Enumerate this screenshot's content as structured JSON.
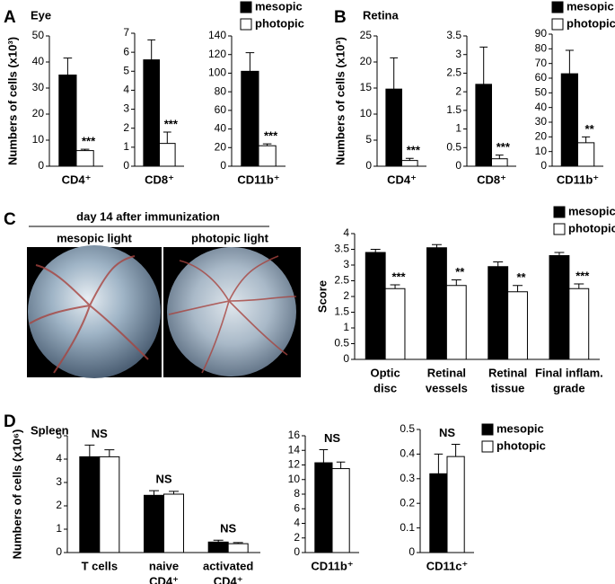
{
  "panels": [
    {
      "label": "A",
      "title": "Eye"
    },
    {
      "label": "B",
      "title": "Retina"
    },
    {
      "label": "C"
    },
    {
      "label": "D",
      "title": "Spleen"
    }
  ],
  "fundus": {
    "title": "day 14 after immunization",
    "labels": [
      "mesopic light",
      "photopic light"
    ]
  },
  "chart_data": [
    {
      "type": "bar",
      "ylabel": "Numbers of cells (x10³)",
      "categories": [
        [
          "CD4⁺"
        ]
      ],
      "series": [
        {
          "color": "#000000",
          "values": [
            35
          ],
          "errors": [
            6.5
          ]
        },
        {
          "color": "#ffffff",
          "values": [
            6
          ],
          "errors": [
            0.5
          ]
        }
      ],
      "annotations": [
        "***"
      ],
      "annotation_anchor": "photopic",
      "ylim": [
        0,
        50
      ],
      "yticks": [
        0,
        10,
        20,
        30,
        40,
        50
      ]
    },
    {
      "type": "bar",
      "categories": [
        [
          "CD8⁺"
        ]
      ],
      "series": [
        {
          "color": "#000000",
          "values": [
            5.6
          ],
          "errors": [
            1.05
          ]
        },
        {
          "color": "#ffffff",
          "values": [
            1.2
          ],
          "errors": [
            0.6
          ]
        }
      ],
      "annotations": [
        "***"
      ],
      "annotation_anchor": "photopic",
      "ylim": [
        0,
        7
      ],
      "yticks": [
        0,
        1,
        2,
        3,
        4,
        5,
        6,
        7
      ]
    },
    {
      "type": "bar",
      "categories": [
        [
          "CD11b⁺"
        ]
      ],
      "series": [
        {
          "name": "mesopic",
          "color": "#000000",
          "values": [
            102
          ],
          "errors": [
            20
          ]
        },
        {
          "name": "photopic",
          "color": "#ffffff",
          "values": [
            22
          ],
          "errors": [
            2
          ]
        }
      ],
      "annotations": [
        "***"
      ],
      "annotation_anchor": "photopic",
      "ylim": [
        0,
        140
      ],
      "yticks": [
        0,
        20,
        40,
        60,
        80,
        100,
        120,
        140
      ],
      "legend": "top-right"
    },
    {
      "type": "bar",
      "ylabel": "Numbers of cells (x10³)",
      "categories": [
        [
          "CD4⁺"
        ]
      ],
      "series": [
        {
          "color": "#000000",
          "values": [
            14.8
          ],
          "errors": [
            6
          ]
        },
        {
          "color": "#ffffff",
          "values": [
            1.1
          ],
          "errors": [
            0.4
          ]
        }
      ],
      "annotations": [
        "***"
      ],
      "annotation_anchor": "photopic",
      "ylim": [
        0,
        25
      ],
      "yticks": [
        0,
        5,
        10,
        15,
        20,
        25
      ]
    },
    {
      "type": "bar",
      "categories": [
        [
          "CD8⁺"
        ]
      ],
      "series": [
        {
          "color": "#000000",
          "values": [
            2.2
          ],
          "errors": [
            1.0
          ]
        },
        {
          "color": "#ffffff",
          "values": [
            0.2
          ],
          "errors": [
            0.1
          ]
        }
      ],
      "annotations": [
        "***"
      ],
      "annotation_anchor": "photopic",
      "ylim": [
        0,
        3.5
      ],
      "yticks": [
        0,
        0.5,
        1,
        1.5,
        2,
        2.5,
        3,
        3.5
      ]
    },
    {
      "type": "bar",
      "categories": [
        [
          "CD11b⁺"
        ]
      ],
      "series": [
        {
          "name": "mesopic",
          "color": "#000000",
          "values": [
            63
          ],
          "errors": [
            16
          ]
        },
        {
          "name": "photopic",
          "color": "#ffffff",
          "values": [
            16
          ],
          "errors": [
            4
          ]
        }
      ],
      "annotations": [
        "**"
      ],
      "annotation_anchor": "photopic",
      "ylim": [
        0,
        90
      ],
      "yticks": [
        0,
        10,
        20,
        30,
        40,
        50,
        60,
        70,
        80,
        90
      ],
      "legend": "top-right"
    },
    {
      "type": "bar",
      "ylabel": "Score",
      "categories": [
        [
          "Optic",
          "disc"
        ],
        [
          "Retinal",
          "vessels"
        ],
        [
          "Retinal",
          "tissue"
        ],
        [
          "Final inflam.",
          "grade"
        ]
      ],
      "series": [
        {
          "name": "mesopic",
          "color": "#000000",
          "values": [
            3.4,
            3.55,
            2.95,
            3.3
          ],
          "errors": [
            0.1,
            0.1,
            0.15,
            0.1
          ]
        },
        {
          "name": "photopic",
          "color": "#ffffff",
          "values": [
            2.25,
            2.35,
            2.15,
            2.25
          ],
          "errors": [
            0.12,
            0.18,
            0.2,
            0.15
          ]
        }
      ],
      "annotations": [
        "***",
        "**",
        "**",
        "***"
      ],
      "annotation_anchor": "photopic",
      "ylim": [
        0,
        4
      ],
      "yticks": [
        0,
        0.5,
        1,
        1.5,
        2,
        2.5,
        3,
        3.5,
        4
      ],
      "legend": "top-right"
    },
    {
      "type": "bar",
      "ylabel": "Numbers of cells (x10⁶)",
      "categories": [
        [
          "T cells"
        ],
        [
          "naive",
          "CD4⁺"
        ],
        [
          "activated",
          "CD4⁺"
        ]
      ],
      "series": [
        {
          "color": "#000000",
          "values": [
            4.1,
            2.45,
            0.45
          ],
          "errors": [
            0.5,
            0.2,
            0.08
          ]
        },
        {
          "color": "#ffffff",
          "values": [
            4.1,
            2.5,
            0.38
          ],
          "errors": [
            0.3,
            0.12,
            0.05
          ]
        }
      ],
      "annotations": [
        "NS",
        "NS",
        "NS"
      ],
      "annotation_anchor": "category",
      "ylim": [
        0,
        5
      ],
      "yticks": [
        0,
        1,
        2,
        3,
        4,
        5
      ]
    },
    {
      "type": "bar",
      "categories": [
        [
          "CD11b⁺"
        ]
      ],
      "series": [
        {
          "color": "#000000",
          "values": [
            12.3
          ],
          "errors": [
            1.8
          ]
        },
        {
          "color": "#ffffff",
          "values": [
            11.5
          ],
          "errors": [
            0.9
          ]
        }
      ],
      "annotations": [
        "NS"
      ],
      "annotation_anchor": "category",
      "ylim": [
        0,
        16
      ],
      "yticks": [
        0,
        2,
        4,
        6,
        8,
        10,
        12,
        14,
        16
      ]
    },
    {
      "type": "bar",
      "categories": [
        [
          "CD11c⁺"
        ]
      ],
      "series": [
        {
          "name": "mesopic",
          "color": "#000000",
          "values": [
            0.32
          ],
          "errors": [
            0.08
          ]
        },
        {
          "name": "photopic",
          "color": "#ffffff",
          "values": [
            0.39
          ],
          "errors": [
            0.05
          ]
        }
      ],
      "annotations": [
        "NS"
      ],
      "annotation_anchor": "category",
      "ylim": [
        0,
        0.5
      ],
      "yticks": [
        0,
        0.1,
        0.2,
        0.3,
        0.4,
        0.5
      ],
      "legend": "right"
    }
  ]
}
